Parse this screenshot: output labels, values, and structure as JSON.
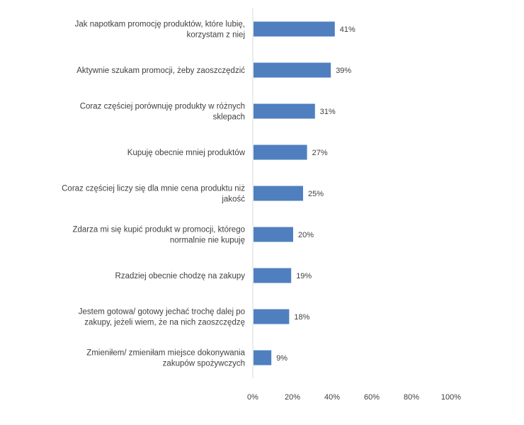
{
  "chart_data": {
    "type": "bar",
    "orientation": "horizontal",
    "categories": [
      "Jak napotkam promocję produktów, które lubię, korzystam z niej",
      "Aktywnie szukam promocji, żeby zaoszczędzić",
      "Coraz częściej porównuję produkty w różnych sklepach",
      "Kupuję obecnie mniej produktów",
      "Coraz częściej liczy się dla mnie cena produktu niż jakość",
      "Zdarza mi się kupić produkt w promocji, którego normalnie nie kupuję",
      "Rzadziej obecnie chodzę na zakupy",
      "Jestem gotowa/ gotowy jechać trochę dalej po zakupy, jeżeli wiem, że na nich zaoszczędzę",
      "Zmieniłem/ zmieniłam miejsce dokonywania zakupów spożywczych"
    ],
    "category_label_lines": [
      [
        "Jak napotkam promocję produktów, które lubię,",
        "korzystam z niej"
      ],
      [
        "Aktywnie szukam promocji, żeby zaoszczędzić"
      ],
      [
        "Coraz częściej porównuję produkty w różnych",
        "sklepach"
      ],
      [
        "Kupuję obecnie mniej produktów"
      ],
      [
        "Coraz częściej liczy się dla mnie cena produktu niż",
        "jakość"
      ],
      [
        "Zdarza mi się kupić produkt w promocji, którego",
        "normalnie nie kupuję"
      ],
      [
        "Rzadziej obecnie chodzę na zakupy"
      ],
      [
        "Jestem gotowa/ gotowy jechać trochę dalej po",
        "zakupy, jeżeli wiem, że na nich zaoszczędzę"
      ],
      [
        "Zmieniłem/ zmieniłam miejsce dokonywania",
        "zakupów spożywczych"
      ]
    ],
    "values": [
      41,
      39,
      31,
      27,
      25,
      20,
      19,
      18,
      9
    ],
    "data_labels": [
      "41%",
      "39%",
      "31%",
      "27%",
      "25%",
      "20%",
      "19%",
      "18%",
      "9%"
    ],
    "x_ticks": [
      0,
      20,
      40,
      60,
      80,
      100
    ],
    "x_tick_labels": [
      "0%",
      "20%",
      "40%",
      "60%",
      "80%",
      "100%"
    ],
    "xlim": [
      0,
      100
    ],
    "grid": false,
    "legend": "none",
    "bar_color": "#4f7fbf",
    "axis_color": "#d9d9d9"
  }
}
